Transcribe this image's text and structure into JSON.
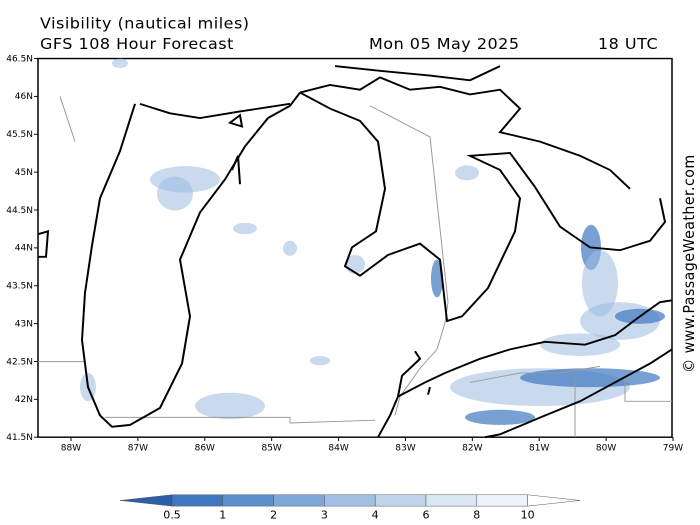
{
  "header": {
    "title": "Visibility (nautical miles)",
    "subtitle": "GFS 108 Hour Forecast",
    "date": "Mon 05 May 2025",
    "time": "18 UTC"
  },
  "credit": "© www.PassageWeather.com",
  "lat_labels": [
    "46.5N",
    "46N",
    "45.5N",
    "45N",
    "44.5N",
    "44N",
    "43.5N",
    "43N",
    "42.5N",
    "42N",
    "41.5N"
  ],
  "lon_labels": [
    "88W",
    "87W",
    "86W",
    "85W",
    "84W",
    "83W",
    "82W",
    "81W",
    "80W",
    "79W"
  ],
  "legend": {
    "values": [
      0.5,
      1,
      2,
      3,
      4,
      6,
      8,
      10
    ],
    "colors": [
      "#2c5fa8",
      "#3f78bf",
      "#5b8fcc",
      "#7ea7d8",
      "#a0bfe3",
      "#c0d5ec",
      "#dae6f4",
      "#eef3fa",
      "#ffffff"
    ]
  }
}
